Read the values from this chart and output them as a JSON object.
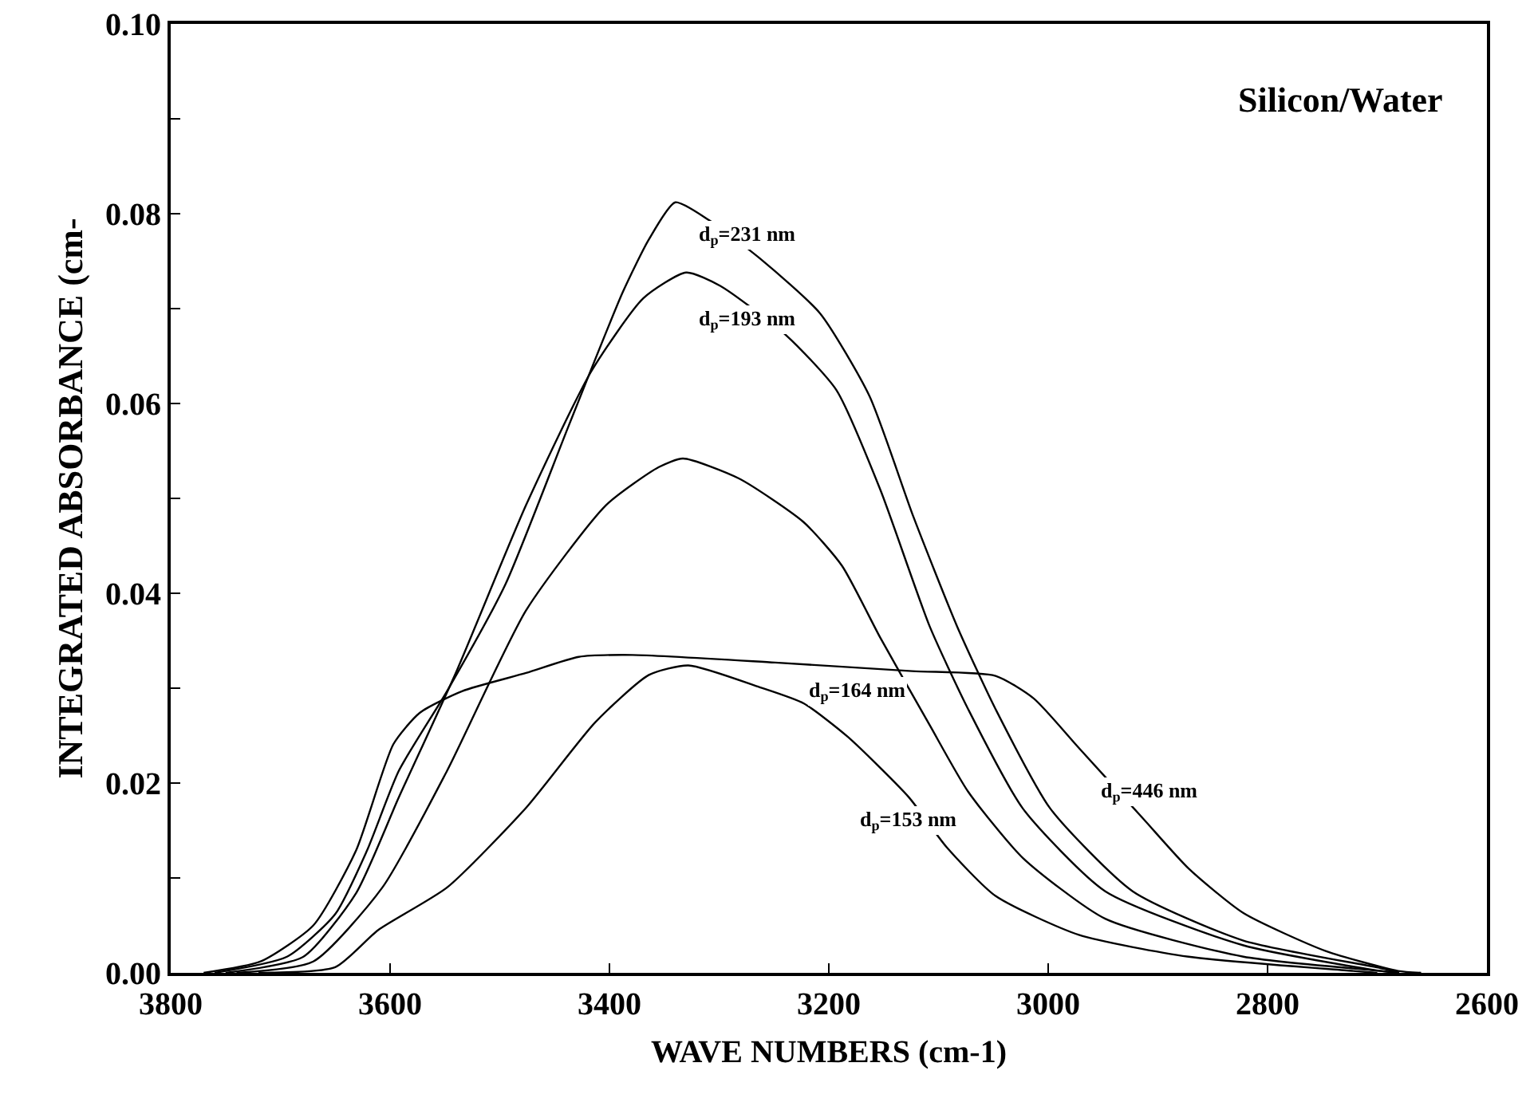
{
  "chart_data": {
    "type": "line",
    "xlabel": "WAVE NUMBERS (cm-1)",
    "ylabel": "INTEGRATED ABSORBANCE (cm-",
    "xlim": [
      3800,
      2600
    ],
    "xticks": [
      3800,
      3600,
      3400,
      3200,
      3000,
      2800,
      2600
    ],
    "ylim": [
      0,
      0.1
    ],
    "yticks": [
      {
        "value": 0,
        "label": "0.00"
      },
      {
        "value": 0.01,
        "label": null
      },
      0.02,
      {
        "value": 0.03,
        "label": null
      },
      0.04,
      {
        "value": 0.05,
        "label": null
      },
      0.06,
      {
        "value": 0.07,
        "label": null
      },
      0.08,
      {
        "value": 0.09,
        "label": null
      },
      {
        "value": 0.1,
        "label": "0.10"
      }
    ],
    "grid": false,
    "legend": false,
    "marker": "none",
    "line_style": "solid",
    "series": [
      {
        "name": "d$_{p}$=231 nm",
        "color": "#000000",
        "x": [
          3760,
          3694,
          3650,
          3621,
          3592,
          3548,
          3495,
          3437,
          3388,
          3364,
          3340,
          3309,
          3263,
          3208,
          3163,
          3123,
          3083,
          3048,
          2998,
          2923,
          2822,
          2697,
          2680
        ],
        "values": [
          0,
          0.0017,
          0.0062,
          0.0129,
          0.0213,
          0.0297,
          0.0409,
          0.0577,
          0.0717,
          0.0773,
          0.0812,
          0.0793,
          0.0753,
          0.0695,
          0.0608,
          0.0481,
          0.0365,
          0.0278,
          0.0173,
          0.0086,
          0.0034,
          0.0005,
          0
        ]
      },
      {
        "name": "d$_{p}$=193 nm",
        "color": "#000000",
        "x": [
          3750,
          3679,
          3631,
          3592,
          3539,
          3476,
          3417,
          3369,
          3330,
          3299,
          3239,
          3193,
          3153,
          3108,
          3073,
          3023,
          2948,
          2822,
          2697,
          2680
        ],
        "values": [
          0,
          0.0017,
          0.0084,
          0.0185,
          0.0319,
          0.0493,
          0.0633,
          0.0711,
          0.0738,
          0.0724,
          0.0672,
          0.0614,
          0.0509,
          0.0365,
          0.0278,
          0.0173,
          0.0086,
          0.0029,
          0.0002,
          0
        ]
      },
      {
        "name": "d$_{p}$=164 nm",
        "color": "#000000",
        "x": [
          3740,
          3670,
          3607,
          3548,
          3476,
          3403,
          3355,
          3333,
          3282,
          3223,
          3188,
          3153,
          3108,
          3073,
          3023,
          2948,
          2822,
          2697,
          2680
        ],
        "values": [
          0,
          0.0012,
          0.009,
          0.0213,
          0.0382,
          0.0493,
          0.0533,
          0.0542,
          0.0521,
          0.0475,
          0.0429,
          0.0353,
          0.0261,
          0.0191,
          0.0121,
          0.0057,
          0.0017,
          0.0002,
          0
        ]
      },
      {
        "name": "d$_{p}$=153 nm",
        "color": "#000000",
        "x": [
          3720,
          3650,
          3611,
          3548,
          3476,
          3413,
          3364,
          3328,
          3263,
          3223,
          3183,
          3127,
          3093,
          3048,
          2972,
          2872,
          2722,
          2700
        ],
        "values": [
          0,
          0.0006,
          0.0045,
          0.009,
          0.0174,
          0.0264,
          0.0314,
          0.0324,
          0.0301,
          0.0284,
          0.0249,
          0.0185,
          0.0133,
          0.0081,
          0.004,
          0.0017,
          0.0002,
          0
        ]
      },
      {
        "name": "d$_{p}$=446 nm",
        "color": "#000000",
        "x": [
          3770,
          3718,
          3670,
          3631,
          3597,
          3573,
          3534,
          3476,
          3428,
          3379,
          3249,
          3124,
          3048,
          3013,
          2972,
          2913,
          2872,
          2822,
          2747,
          2681,
          2660
        ],
        "values": [
          0,
          0.0012,
          0.005,
          0.0129,
          0.0241,
          0.0274,
          0.0297,
          0.0316,
          0.0333,
          0.0335,
          0.0327,
          0.0318,
          0.0313,
          0.0289,
          0.0237,
          0.0162,
          0.011,
          0.0063,
          0.0023,
          0.0002,
          0
        ]
      }
    ],
    "annotations": [
      "Silicon/Water"
    ]
  }
}
